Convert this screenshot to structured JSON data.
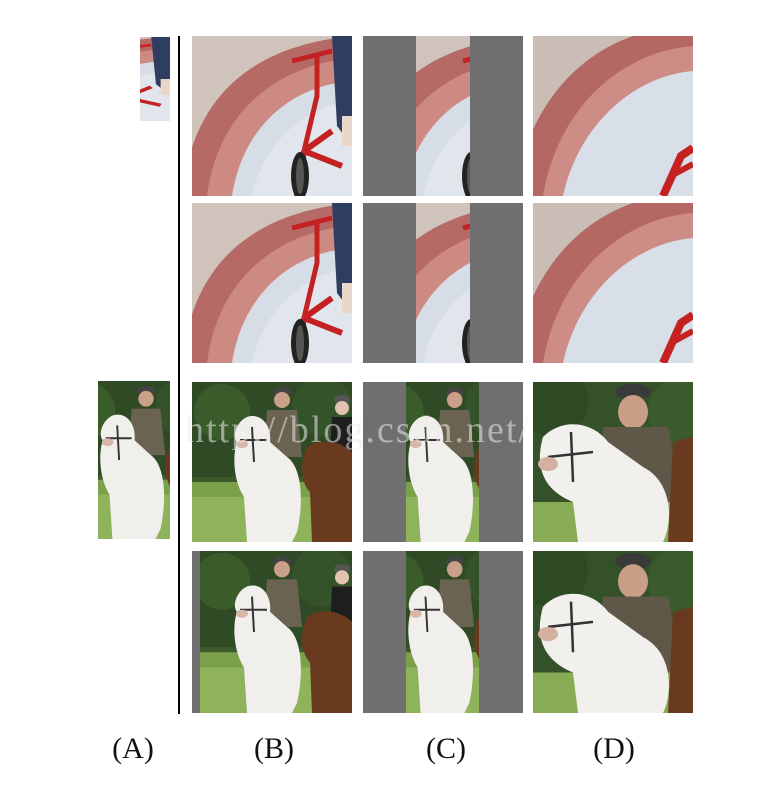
{
  "column_labels": [
    "(A)",
    "(B)",
    "(C)",
    "(D)"
  ],
  "watermark": "http://blog.csdn.net/",
  "colors": {
    "gray_bar": "#6f6f6f",
    "divider": "#000000",
    "background": "#ffffff"
  }
}
